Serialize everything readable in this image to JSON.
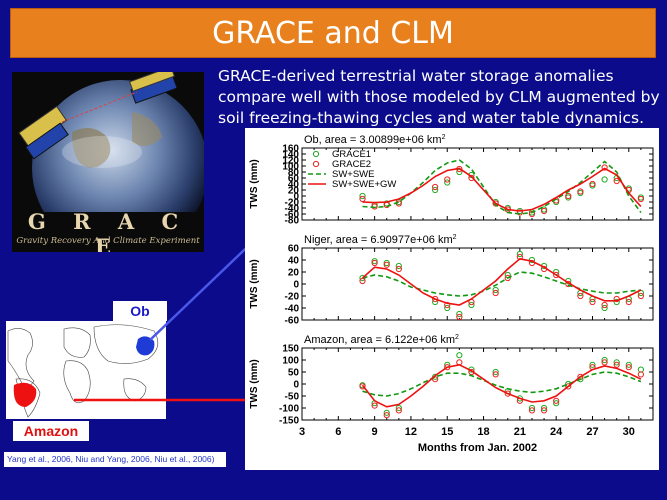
{
  "slide": {
    "title": "GRACE and CLM",
    "description": "GRACE-derived terrestrial water storage anomalies compare well with those modeled by CLM augmented by soil freezing-thawing cycles and water table dynamics.",
    "references": "Yang et al., 2006, Niu and Yang, 2006, Niu et al., 2006)"
  },
  "logo": {
    "word": "G R A C E",
    "subtitle": "Gravity Recovery And Climate Experiment"
  },
  "map": {
    "label_ob": "Ob",
    "label_amazon": "Amazon"
  },
  "colors": {
    "background": "#0b0b8c",
    "title_bar": "#e8801e",
    "grace1": "#22aa22",
    "grace2": "#ee2222",
    "sw_swe": "#119911",
    "sw_swe_gw": "#ee1111"
  },
  "chart_data": [
    {
      "type": "line",
      "title": "Ob, area = 3.00899e+06 km",
      "title_sup": "2",
      "ylabel": "TWS (mm)",
      "ylim": [
        -80,
        160
      ],
      "yticks": [
        -80,
        -60,
        -40,
        -20,
        0,
        20,
        40,
        60,
        80,
        100,
        120,
        140,
        160
      ],
      "xlim": [
        3,
        32
      ],
      "legend": [
        "GRACE1",
        "GRACE2",
        "SW+SWE",
        "SW+SWE+GW"
      ],
      "legend_position": "top-left",
      "series": [
        {
          "name": "GRACE1",
          "style": "circle",
          "x": [
            8,
            9,
            10,
            11,
            14,
            15,
            16,
            17,
            19,
            20,
            21,
            22,
            23,
            24,
            25,
            26,
            27,
            28,
            29,
            30,
            31
          ],
          "y": [
            0,
            -30,
            -25,
            -20,
            20,
            45,
            80,
            70,
            -20,
            -40,
            -50,
            -55,
            -45,
            -20,
            -5,
            10,
            35,
            55,
            60,
            25,
            -5
          ]
        },
        {
          "name": "GRACE2",
          "style": "circle",
          "x": [
            8,
            9,
            10,
            11,
            14,
            15,
            16,
            17,
            19,
            20,
            21,
            22,
            23,
            24,
            25,
            26,
            27,
            28,
            29,
            30,
            31
          ],
          "y": [
            -10,
            -35,
            -30,
            -25,
            30,
            55,
            90,
            60,
            -25,
            -45,
            -55,
            -60,
            -50,
            -15,
            0,
            15,
            40,
            95,
            50,
            20,
            -10
          ]
        },
        {
          "name": "SW+SWE",
          "style": "dashed",
          "x": [
            8,
            9,
            10,
            11,
            12,
            13,
            14,
            15,
            16,
            17,
            18,
            19,
            20,
            21,
            22,
            23,
            24,
            25,
            26,
            27,
            28,
            29,
            30,
            31
          ],
          "y": [
            -35,
            -38,
            -35,
            -20,
            10,
            45,
            85,
            110,
            120,
            90,
            30,
            -30,
            -55,
            -60,
            -55,
            -35,
            -10,
            15,
            45,
            80,
            115,
            80,
            0,
            -55
          ]
        },
        {
          "name": "SW+SWE+GW",
          "style": "solid",
          "x": [
            8,
            9,
            10,
            11,
            12,
            13,
            14,
            15,
            16,
            17,
            18,
            19,
            20,
            21,
            22,
            23,
            24,
            25,
            26,
            27,
            28,
            29,
            30,
            31
          ],
          "y": [
            -20,
            -22,
            -20,
            -10,
            10,
            35,
            65,
            85,
            92,
            65,
            20,
            -25,
            -45,
            -50,
            -45,
            -28,
            -5,
            20,
            40,
            65,
            92,
            70,
            10,
            -35
          ]
        }
      ]
    },
    {
      "type": "line",
      "title": "Niger, area = 6.90977e+06 km",
      "title_sup": "2",
      "ylabel": "TWS (mm)",
      "ylim": [
        -60,
        60
      ],
      "yticks": [
        -60,
        -40,
        -20,
        0,
        20,
        40,
        60
      ],
      "xlim": [
        3,
        32
      ],
      "series": [
        {
          "name": "GRACE1",
          "style": "circle",
          "x": [
            8,
            9,
            10,
            11,
            14,
            15,
            16,
            17,
            19,
            20,
            21,
            22,
            23,
            24,
            25,
            26,
            27,
            28,
            29,
            30,
            31
          ],
          "y": [
            10,
            38,
            35,
            30,
            -30,
            -40,
            -50,
            -35,
            -10,
            15,
            50,
            40,
            30,
            20,
            5,
            -15,
            -25,
            -40,
            -30,
            -25,
            -15
          ]
        },
        {
          "name": "GRACE2",
          "style": "circle",
          "x": [
            8,
            9,
            10,
            11,
            14,
            15,
            16,
            17,
            19,
            20,
            21,
            22,
            23,
            24,
            25,
            26,
            27,
            28,
            29,
            30,
            31
          ],
          "y": [
            5,
            35,
            32,
            25,
            -25,
            -35,
            -55,
            -30,
            -15,
            10,
            45,
            35,
            25,
            15,
            0,
            -20,
            -30,
            -35,
            -25,
            -30,
            -20
          ]
        },
        {
          "name": "SW+SWE",
          "style": "dashed",
          "x": [
            8,
            9,
            10,
            11,
            12,
            13,
            14,
            15,
            16,
            17,
            18,
            19,
            20,
            21,
            22,
            23,
            24,
            25,
            26,
            27,
            28,
            29,
            30,
            31
          ],
          "y": [
            10,
            15,
            12,
            5,
            -5,
            -10,
            -15,
            -18,
            -20,
            -18,
            -12,
            -2,
            10,
            20,
            18,
            12,
            5,
            -2,
            -8,
            -12,
            -15,
            -15,
            -12,
            -10
          ]
        },
        {
          "name": "SW+SWE+GW",
          "style": "solid",
          "x": [
            8,
            9,
            10,
            11,
            12,
            13,
            14,
            15,
            16,
            17,
            18,
            19,
            20,
            21,
            22,
            23,
            24,
            25,
            26,
            27,
            28,
            29,
            30,
            31
          ],
          "y": [
            10,
            28,
            25,
            15,
            0,
            -15,
            -25,
            -32,
            -35,
            -25,
            -10,
            5,
            25,
            42,
            38,
            28,
            15,
            2,
            -10,
            -20,
            -28,
            -28,
            -20,
            -10
          ]
        }
      ]
    },
    {
      "type": "line",
      "title": "Amazon, area = 6.122e+06 km",
      "title_sup": "2",
      "ylabel": "TWS (mm)",
      "xlabel": "Months from Jan. 2002",
      "ylim": [
        -150,
        150
      ],
      "yticks": [
        -150,
        -100,
        -50,
        0,
        50,
        100,
        150
      ],
      "xlim": [
        3,
        32
      ],
      "xticks": [
        3,
        6,
        9,
        12,
        15,
        18,
        21,
        24,
        27,
        30
      ],
      "series": [
        {
          "name": "GRACE1",
          "style": "circle",
          "x": [
            8,
            9,
            10,
            11,
            14,
            15,
            16,
            17,
            19,
            20,
            21,
            22,
            23,
            24,
            25,
            26,
            27,
            28,
            29,
            30,
            31
          ],
          "y": [
            -5,
            -80,
            -120,
            -100,
            30,
            80,
            120,
            60,
            50,
            -30,
            -60,
            -100,
            -100,
            -80,
            0,
            20,
            80,
            100,
            90,
            80,
            60
          ]
        },
        {
          "name": "GRACE2",
          "style": "circle",
          "x": [
            8,
            9,
            10,
            11,
            14,
            15,
            16,
            17,
            19,
            20,
            21,
            22,
            23,
            24,
            25,
            26,
            27,
            28,
            29,
            30,
            31
          ],
          "y": [
            -10,
            -90,
            -130,
            -110,
            20,
            70,
            90,
            50,
            40,
            -40,
            -70,
            -110,
            -110,
            -70,
            -10,
            30,
            70,
            90,
            80,
            70,
            40
          ]
        },
        {
          "name": "SW+SWE",
          "style": "dashed",
          "x": [
            8,
            9,
            10,
            11,
            12,
            13,
            14,
            15,
            16,
            17,
            18,
            19,
            20,
            21,
            22,
            23,
            24,
            25,
            26,
            27,
            28,
            29,
            30,
            31
          ],
          "y": [
            -30,
            -45,
            -50,
            -40,
            -20,
            5,
            30,
            45,
            45,
            35,
            15,
            -5,
            -20,
            -30,
            -35,
            -30,
            -20,
            0,
            20,
            40,
            50,
            45,
            30,
            10
          ]
        },
        {
          "name": "SW+SWE+GW",
          "style": "solid",
          "x": [
            8,
            9,
            10,
            11,
            12,
            13,
            14,
            15,
            16,
            17,
            18,
            19,
            20,
            21,
            22,
            23,
            24,
            25,
            26,
            27,
            28,
            29,
            30,
            31
          ],
          "y": [
            -5,
            -70,
            -95,
            -85,
            -50,
            -10,
            35,
            70,
            80,
            55,
            20,
            -15,
            -40,
            -60,
            -75,
            -70,
            -50,
            -10,
            30,
            60,
            75,
            65,
            45,
            20
          ]
        }
      ]
    }
  ]
}
